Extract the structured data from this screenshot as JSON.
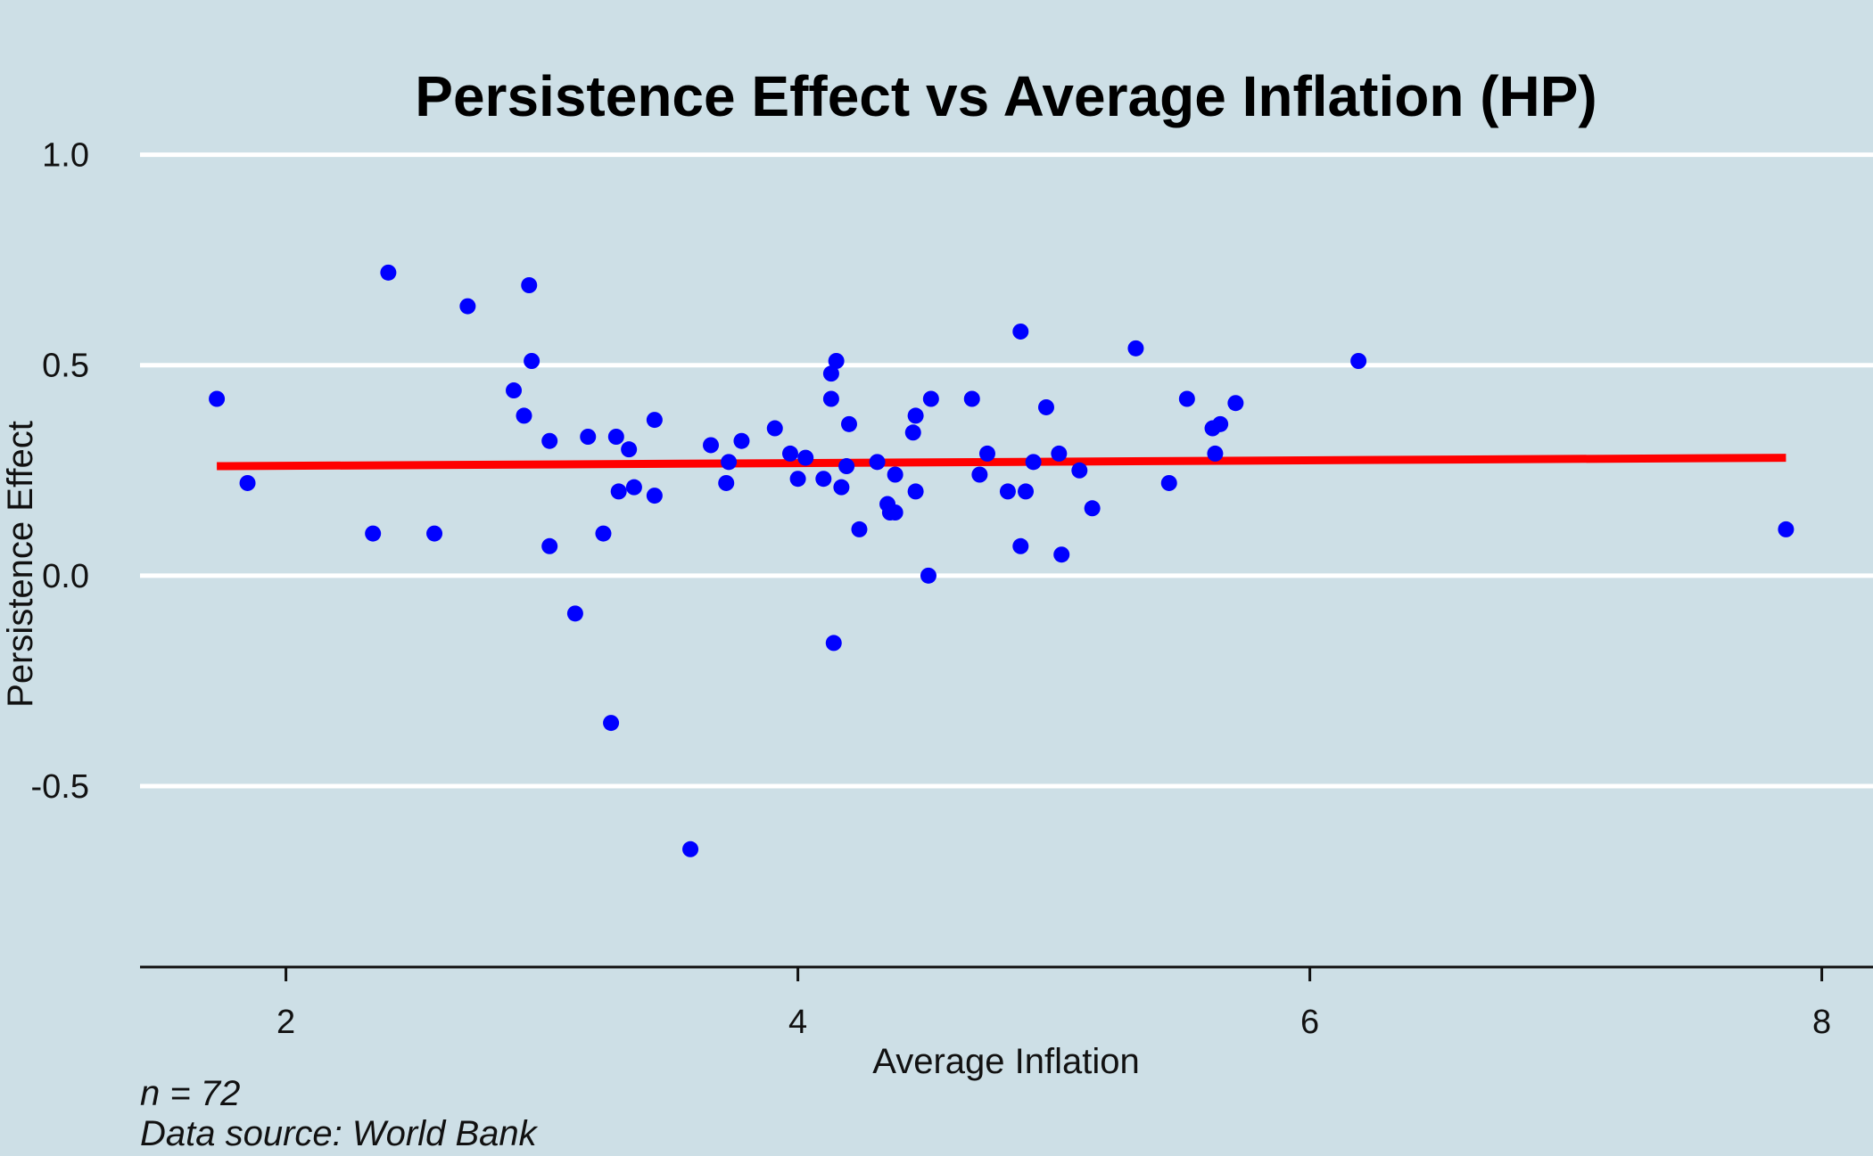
{
  "chart_data": {
    "type": "scatter",
    "title": "Persistence Effect vs Average Inflation (HP)",
    "xlabel": "Average Inflation",
    "ylabel": "Persistence Effect",
    "xlim": [
      1.43,
      8.2
    ],
    "ylim": [
      -0.93,
      1.05
    ],
    "x_ticks": [
      2,
      4,
      6,
      8
    ],
    "x_tick_labels": [
      "2",
      "4",
      "6",
      "8"
    ],
    "y_ticks": [
      -0.5,
      0.0,
      0.5,
      1.0
    ],
    "y_tick_labels": [
      "-0.5",
      "0.0",
      "0.5",
      "1.0"
    ],
    "grid": "horizontal",
    "colors": {
      "background": "#cddfe6",
      "points": "#0000ff",
      "trend": "#ff0000",
      "grid": "#ffffff",
      "axis": "#111111"
    },
    "points": [
      {
        "x": 1.73,
        "y": 0.42
      },
      {
        "x": 1.85,
        "y": 0.22
      },
      {
        "x": 2.34,
        "y": 0.1
      },
      {
        "x": 2.4,
        "y": 0.72
      },
      {
        "x": 2.58,
        "y": 0.1
      },
      {
        "x": 2.71,
        "y": 0.64
      },
      {
        "x": 2.89,
        "y": 0.44
      },
      {
        "x": 2.93,
        "y": 0.38
      },
      {
        "x": 2.95,
        "y": 0.69
      },
      {
        "x": 2.96,
        "y": 0.51
      },
      {
        "x": 3.03,
        "y": 0.32
      },
      {
        "x": 3.03,
        "y": 0.07
      },
      {
        "x": 3.13,
        "y": -0.09
      },
      {
        "x": 3.18,
        "y": 0.33
      },
      {
        "x": 3.24,
        "y": 0.1
      },
      {
        "x": 3.27,
        "y": -0.35
      },
      {
        "x": 3.29,
        "y": 0.33
      },
      {
        "x": 3.3,
        "y": 0.2
      },
      {
        "x": 3.34,
        "y": 0.3
      },
      {
        "x": 3.36,
        "y": 0.21
      },
      {
        "x": 3.44,
        "y": 0.37
      },
      {
        "x": 3.44,
        "y": 0.19
      },
      {
        "x": 3.58,
        "y": -0.65
      },
      {
        "x": 3.66,
        "y": 0.31
      },
      {
        "x": 3.72,
        "y": 0.22
      },
      {
        "x": 3.73,
        "y": 0.27
      },
      {
        "x": 3.78,
        "y": 0.32
      },
      {
        "x": 3.91,
        "y": 0.35
      },
      {
        "x": 3.97,
        "y": 0.29
      },
      {
        "x": 4.0,
        "y": 0.23
      },
      {
        "x": 4.03,
        "y": 0.28
      },
      {
        "x": 4.1,
        "y": 0.23
      },
      {
        "x": 4.13,
        "y": 0.42
      },
      {
        "x": 4.13,
        "y": 0.48
      },
      {
        "x": 4.14,
        "y": -0.16
      },
      {
        "x": 4.15,
        "y": 0.51
      },
      {
        "x": 4.17,
        "y": 0.21
      },
      {
        "x": 4.19,
        "y": 0.26
      },
      {
        "x": 4.2,
        "y": 0.36
      },
      {
        "x": 4.24,
        "y": 0.11
      },
      {
        "x": 4.31,
        "y": 0.27
      },
      {
        "x": 4.35,
        "y": 0.17
      },
      {
        "x": 4.36,
        "y": 0.15
      },
      {
        "x": 4.38,
        "y": 0.15
      },
      {
        "x": 4.38,
        "y": 0.24
      },
      {
        "x": 4.45,
        "y": 0.34
      },
      {
        "x": 4.46,
        "y": 0.38
      },
      {
        "x": 4.46,
        "y": 0.2
      },
      {
        "x": 4.51,
        "y": 0.0
      },
      {
        "x": 4.52,
        "y": 0.42
      },
      {
        "x": 4.68,
        "y": 0.42
      },
      {
        "x": 4.71,
        "y": 0.24
      },
      {
        "x": 4.74,
        "y": 0.29
      },
      {
        "x": 4.82,
        "y": 0.2
      },
      {
        "x": 4.87,
        "y": 0.07
      },
      {
        "x": 4.87,
        "y": 0.58
      },
      {
        "x": 4.89,
        "y": 0.2
      },
      {
        "x": 4.92,
        "y": 0.27
      },
      {
        "x": 4.97,
        "y": 0.4
      },
      {
        "x": 5.02,
        "y": 0.29
      },
      {
        "x": 5.03,
        "y": 0.05
      },
      {
        "x": 5.1,
        "y": 0.25
      },
      {
        "x": 5.15,
        "y": 0.16
      },
      {
        "x": 5.32,
        "y": 0.54
      },
      {
        "x": 5.45,
        "y": 0.22
      },
      {
        "x": 5.52,
        "y": 0.42
      },
      {
        "x": 5.62,
        "y": 0.35
      },
      {
        "x": 5.63,
        "y": 0.29
      },
      {
        "x": 5.65,
        "y": 0.36
      },
      {
        "x": 5.71,
        "y": 0.41
      },
      {
        "x": 6.19,
        "y": 0.51
      },
      {
        "x": 7.86,
        "y": 0.11
      }
    ],
    "trend_line": {
      "x": [
        1.73,
        7.86
      ],
      "y": [
        0.26,
        0.28
      ]
    },
    "annotations": [
      "n = 72",
      "Data source: World Bank"
    ]
  }
}
